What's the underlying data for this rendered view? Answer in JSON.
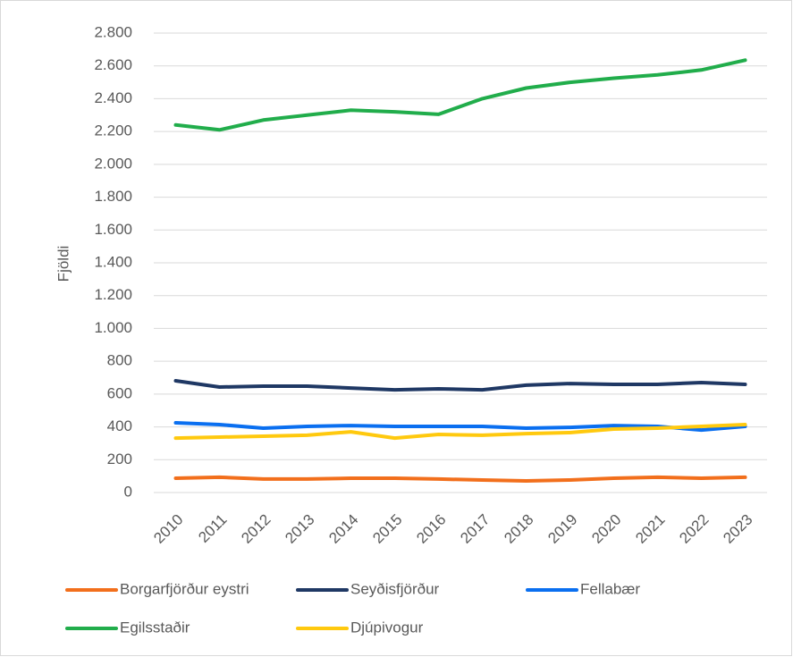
{
  "chart_data": {
    "type": "line",
    "y_label": "Fjöldi",
    "categories": [
      "2010",
      "2011",
      "2012",
      "2013",
      "2014",
      "2015",
      "2016",
      "2017",
      "2018",
      "2019",
      "2020",
      "2021",
      "2022",
      "2023"
    ],
    "series": [
      {
        "name": "Borgarfjörður eystri",
        "color": "#f26f1c",
        "values": [
          87,
          93,
          82,
          82,
          87,
          87,
          82,
          76,
          71,
          76,
          87,
          93,
          87,
          93
        ]
      },
      {
        "name": "Seyðisfjörður",
        "color": "#1f3864",
        "values": [
          681,
          643,
          648,
          648,
          637,
          626,
          632,
          626,
          654,
          664,
          659,
          659,
          670,
          659
        ]
      },
      {
        "name": "Fellabær",
        "color": "#0a6ff0",
        "values": [
          425,
          414,
          392,
          403,
          408,
          403,
          403,
          403,
          392,
          397,
          408,
          403,
          381,
          403
        ]
      },
      {
        "name": "Egilsstaðir",
        "color": "#21ad4b",
        "values": [
          2240,
          2210,
          2270,
          2300,
          2330,
          2320,
          2305,
          2400,
          2465,
          2500,
          2525,
          2545,
          2575,
          2635
        ]
      },
      {
        "name": "Djúpivogur",
        "color": "#ffc90e",
        "values": [
          332,
          338,
          343,
          349,
          370,
          332,
          354,
          349,
          359,
          365,
          387,
          392,
          403,
          414
        ]
      }
    ],
    "ylim": [
      0,
      2800
    ],
    "yticks": [
      0,
      200,
      400,
      600,
      800,
      {
        "value": 1000,
        "label": "1.000"
      },
      {
        "value": 1200,
        "label": "1.200"
      },
      {
        "value": 1400,
        "label": "1.400"
      },
      {
        "value": 1600,
        "label": "1.600"
      },
      {
        "value": 1800,
        "label": "1.800"
      },
      {
        "value": 2000,
        "label": "2.000"
      },
      {
        "value": 2200,
        "label": "2.200"
      },
      {
        "value": 2400,
        "label": "2.400"
      },
      {
        "value": 2600,
        "label": "2.600"
      },
      {
        "value": 2800,
        "label": "2.800"
      }
    ],
    "grid": true
  }
}
